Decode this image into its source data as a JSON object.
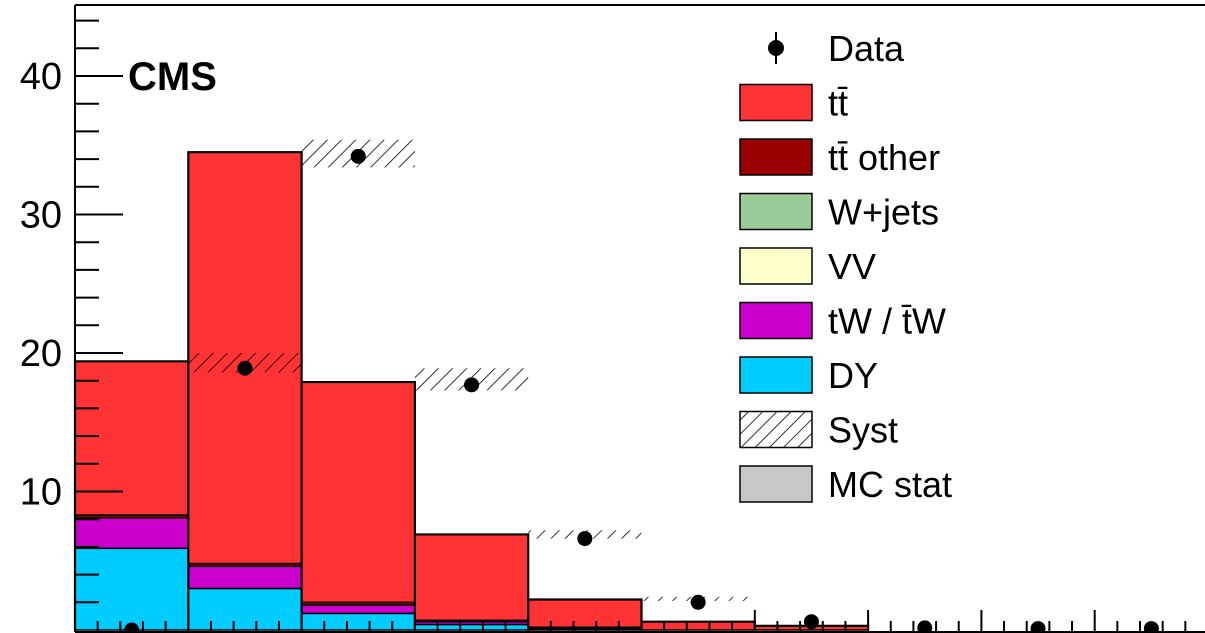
{
  "chart_data": {
    "type": "bar",
    "label": "CMS",
    "ylim": [
      0,
      44
    ],
    "y_ticks": [
      "10",
      "20",
      "30",
      "40"
    ],
    "bin_edges": [
      0,
      1,
      2,
      3,
      4,
      5,
      6,
      7,
      8,
      9,
      10
    ],
    "stacked": true,
    "series": [
      {
        "name": "DY",
        "color": "#00ccff",
        "values": [
          5.9,
          3.0,
          1.2,
          0.4,
          0.1,
          0.0,
          0.0,
          0.0,
          0.0,
          0.0
        ]
      },
      {
        "name": "tW / t̄W",
        "color": "#cc00cc",
        "values": [
          2.2,
          1.6,
          0.6,
          0.2,
          0.05,
          0.0,
          0.0,
          0.0,
          0.0,
          0.0
        ]
      },
      {
        "name": "VV",
        "color": "#ffffcc",
        "values": [
          0.0,
          0.0,
          0.0,
          0.0,
          0.0,
          0.0,
          0.0,
          0.0,
          0.0,
          0.0
        ]
      },
      {
        "name": "W+jets",
        "color": "#99cc99",
        "values": [
          0.0,
          0.0,
          0.0,
          0.0,
          0.0,
          0.0,
          0.0,
          0.0,
          0.0,
          0.0
        ]
      },
      {
        "name": "tt̄ other",
        "color": "#990000",
        "values": [
          0.2,
          0.2,
          0.2,
          0.1,
          0.05,
          0.0,
          0.0,
          0.0,
          0.0,
          0.0
        ]
      },
      {
        "name": "tt̄",
        "color": "#ff3333",
        "values": [
          11.1,
          29.7,
          15.9,
          6.2,
          2.0,
          0.6,
          0.3,
          0.0,
          0.0,
          0.0
        ]
      }
    ],
    "syst_band": [
      {
        "bin": 1,
        "low": 18.6,
        "high": 20.0
      },
      {
        "bin": 2,
        "low": 33.4,
        "high": 35.4
      },
      {
        "bin": 3,
        "low": 17.3,
        "high": 18.9
      },
      {
        "bin": 4,
        "low": 6.6,
        "high": 7.2
      },
      {
        "bin": 5,
        "low": 2.1,
        "high": 2.4
      }
    ],
    "data_points": [
      {
        "x": 0.5,
        "y": 0.0
      },
      {
        "x": 1.5,
        "y": 18.9
      },
      {
        "x": 2.5,
        "y": 34.2
      },
      {
        "x": 3.5,
        "y": 17.7
      },
      {
        "x": 4.5,
        "y": 6.6
      },
      {
        "x": 5.5,
        "y": 2.0
      },
      {
        "x": 6.5,
        "y": 0.6
      },
      {
        "x": 7.5,
        "y": 0.15
      },
      {
        "x": 8.5,
        "y": 0.1
      },
      {
        "x": 9.5,
        "y": 0.1
      },
      {
        "x": 10.5,
        "y": 0.1
      }
    ],
    "legend": {
      "position": "top-right",
      "entries": [
        {
          "label": "Data",
          "kind": "marker",
          "color": "#000000"
        },
        {
          "label": "tt̄",
          "kind": "box",
          "color": "#ff3333"
        },
        {
          "label": "tt̄ other",
          "kind": "box",
          "color": "#990000"
        },
        {
          "label": "W+jets",
          "kind": "box",
          "color": "#99cc99"
        },
        {
          "label": "VV",
          "kind": "box",
          "color": "#ffffcc"
        },
        {
          "label": "tW / t̄W",
          "kind": "box",
          "color": "#cc00cc"
        },
        {
          "label": "DY",
          "kind": "box",
          "color": "#00ccff"
        },
        {
          "label": "Syst",
          "kind": "hatch",
          "color": "#000000"
        },
        {
          "label": "MC stat",
          "kind": "box",
          "color": "#c8c8c8"
        }
      ]
    }
  }
}
